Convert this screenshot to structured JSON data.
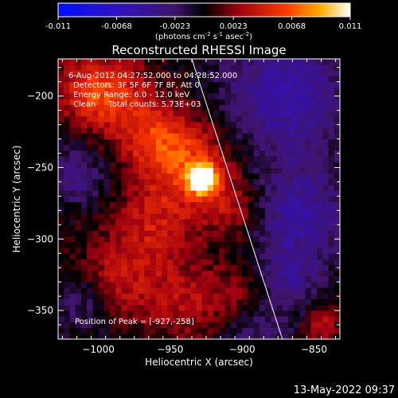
{
  "colorbar": {
    "ticks": [
      "-0.011",
      "-0.0068",
      "-0.0023",
      "0.0023",
      "0.0068",
      "0.011"
    ],
    "unit_parts": [
      "(photons cm",
      "-2",
      " s",
      "-1",
      " asec",
      "-2",
      ")"
    ]
  },
  "chart_data": {
    "type": "heatmap",
    "title": "Reconstructed RHESSI Image",
    "xlabel": "Heliocentric X (arcsec)",
    "ylabel": "Heliocentric Y (arcsec)",
    "xlim": [
      -1028,
      -832
    ],
    "ylim": [
      -370,
      -174
    ],
    "xticks": [
      -1000,
      -950,
      -900,
      -850
    ],
    "xtick_labels": [
      "−1000",
      "−950",
      "−900",
      "−850"
    ],
    "yticks": [
      -200,
      -250,
      -300,
      -350
    ],
    "ytick_labels": [
      "−200",
      "−250",
      "−300",
      "−350"
    ],
    "zlim": [
      -0.011,
      0.011
    ],
    "annotations": [
      "6-Aug-2012 04:27:52.000 to 04:28:52.000",
      "Detectors: 3F 5F 6F 7F 8F, Att 0",
      "Energy Range: 6.0 - 12.0 keV",
      "Clean     Total counts: 5.73E+03",
      "Position of Peak = [-927,-258]"
    ],
    "peak": {
      "x": -927,
      "y": -258
    },
    "limb_line": [
      [
        -935,
        -174
      ],
      [
        -872,
        -370
      ]
    ],
    "sources": [
      {
        "x": -927,
        "y": -258,
        "amp": 0.0115,
        "sigma": 7
      },
      {
        "x": -935,
        "y": -248,
        "amp": 0.005,
        "sigma": 22
      },
      {
        "x": -960,
        "y": -230,
        "amp": 0.004,
        "sigma": 18
      },
      {
        "x": -990,
        "y": -200,
        "amp": 0.0045,
        "sigma": 20
      },
      {
        "x": -1010,
        "y": -195,
        "amp": 0.003,
        "sigma": 15
      },
      {
        "x": -960,
        "y": -290,
        "amp": 0.0035,
        "sigma": 20
      },
      {
        "x": -985,
        "y": -330,
        "amp": 0.0035,
        "sigma": 22
      },
      {
        "x": -935,
        "y": -345,
        "amp": 0.003,
        "sigma": 20
      },
      {
        "x": -900,
        "y": -340,
        "amp": 0.003,
        "sigma": 15
      },
      {
        "x": -905,
        "y": -280,
        "amp": 0.003,
        "sigma": 15
      },
      {
        "x": -845,
        "y": -360,
        "amp": 0.004,
        "sigma": 8
      },
      {
        "x": -1015,
        "y": -255,
        "amp": -0.0035,
        "sigma": 14
      },
      {
        "x": -1010,
        "y": -345,
        "amp": -0.003,
        "sigma": 15
      },
      {
        "x": -870,
        "y": -200,
        "amp": -0.005,
        "sigma": 30
      },
      {
        "x": -860,
        "y": -285,
        "amp": -0.0045,
        "sigma": 25
      },
      {
        "x": -895,
        "y": -360,
        "amp": -0.003,
        "sigma": 18
      },
      {
        "x": -870,
        "y": -330,
        "amp": -0.003,
        "sigma": 15
      }
    ]
  },
  "footer": {
    "timestamp": "13-May-2022 09:37"
  }
}
